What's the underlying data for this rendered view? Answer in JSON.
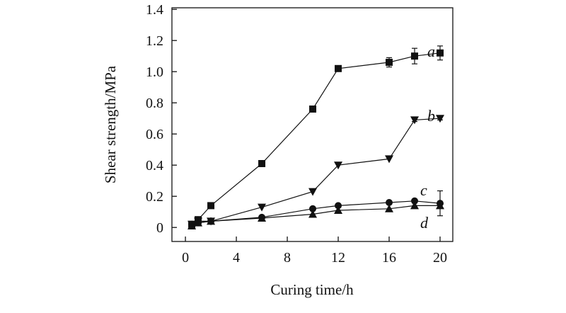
{
  "chart_data": {
    "type": "line",
    "title": "",
    "xlabel": "Curing time/h",
    "ylabel": "Shear strength/MPa",
    "xlim": [
      -1.06,
      21.0
    ],
    "ylim": [
      -0.09,
      1.41
    ],
    "xticks": [
      0,
      4,
      8,
      12,
      16,
      20
    ],
    "yticks": [
      0,
      0.2,
      0.4,
      0.6,
      0.8,
      1.0,
      1.2,
      1.4
    ],
    "ytick_labels": [
      "0",
      "0.2",
      "0.4",
      "0.6",
      "0.8",
      "1.0",
      "1.2",
      "1.4"
    ],
    "grid": false,
    "legend": "inline labels at line ends",
    "color": "#111111",
    "series": [
      {
        "name": "a",
        "marker": "square",
        "x": [
          0.5,
          1,
          2,
          6,
          10,
          12,
          16,
          18,
          20
        ],
        "y": [
          0.02,
          0.05,
          0.14,
          0.41,
          0.76,
          1.02,
          1.06,
          1.1,
          1.12
        ],
        "err": [
          0,
          0,
          0,
          0,
          0.01,
          0.015,
          0.03,
          0.05,
          0.045
        ]
      },
      {
        "name": "b",
        "marker": "triangle-down",
        "x": [
          0.5,
          1,
          2,
          6,
          10,
          12,
          16,
          18,
          20
        ],
        "y": [
          0.02,
          0.04,
          0.04,
          0.13,
          0.23,
          0.4,
          0.44,
          0.69,
          0.7
        ],
        "err": [
          0,
          0,
          0,
          0,
          0,
          0,
          0,
          0.01,
          0.01
        ]
      },
      {
        "name": "c",
        "marker": "circle",
        "x": [
          0.5,
          1,
          2,
          6,
          10,
          12,
          16,
          18,
          20
        ],
        "y": [
          0.02,
          0.03,
          0.04,
          0.065,
          0.12,
          0.14,
          0.16,
          0.17,
          0.155
        ],
        "err": [
          0,
          0,
          0,
          0,
          0,
          0,
          0,
          0,
          0.08
        ]
      },
      {
        "name": "d",
        "marker": "triangle-up",
        "x": [
          0.5,
          1,
          2,
          6,
          10,
          12,
          16,
          18,
          20
        ],
        "y": [
          0.01,
          0.03,
          0.04,
          0.06,
          0.085,
          0.11,
          0.12,
          0.14,
          0.14
        ],
        "err": [
          0,
          0,
          0,
          0,
          0,
          0,
          0,
          0,
          0
        ]
      }
    ]
  }
}
